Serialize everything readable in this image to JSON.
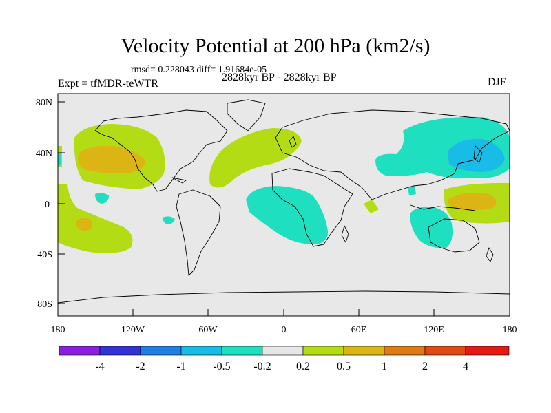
{
  "header": {
    "title": "Velocity Potential at 200 hPa (km2/s)",
    "stats": "rmsd= 0.228043 diff= 1.91684e-05",
    "left_label": "Expt = tfMDR-teWTR",
    "center_label": "2828kyr BP - 2828kyr BP",
    "right_label": "DJF"
  },
  "axes": {
    "lat_ticks": [
      "80N",
      "40N",
      "0",
      "40S",
      "80S"
    ],
    "lon_ticks": [
      "180",
      "120W",
      "60W",
      "0",
      "60E",
      "120E",
      "180"
    ]
  },
  "colorbar": {
    "colors": [
      "#8a1fe0",
      "#3232d6",
      "#1e7fe6",
      "#18bce6",
      "#1ee0c0",
      "#e6e6e6",
      "#b4dc14",
      "#dcb414",
      "#e07b14",
      "#e04a14",
      "#e61a14"
    ],
    "labels": [
      "-4",
      "-2",
      "-1",
      "-0.5",
      "-0.2",
      "0.2",
      "0.5",
      "1",
      "2",
      "4"
    ]
  },
  "map": {
    "background_color": "#e8e8e8",
    "coast_color": "#000000"
  }
}
